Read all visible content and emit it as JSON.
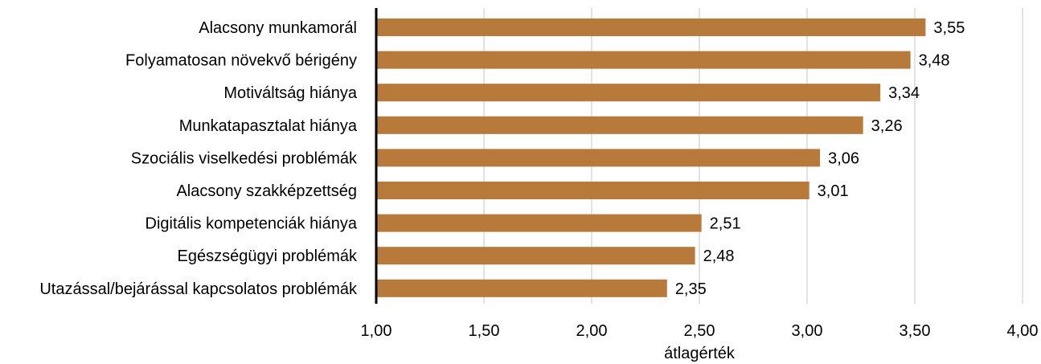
{
  "chart_data": {
    "type": "bar",
    "orientation": "horizontal",
    "categories": [
      "Alacsony munkamorál",
      "Folyamatosan növekvő bérigény",
      "Motiváltság hiánya",
      "Munkatapasztalat hiánya",
      "Szociális viselkedési problémák",
      "Alacsony szakképzettség",
      "Digitális kompetenciák hiánya",
      "Egészségügyi  problémák",
      "Utazással/bejárással kapcsolatos problémák"
    ],
    "values": [
      3.55,
      3.48,
      3.34,
      3.26,
      3.06,
      3.01,
      2.51,
      2.48,
      2.35
    ],
    "value_labels": [
      "3,55",
      "3,48",
      "3,34",
      "3,26",
      "3,06",
      "3,01",
      "2,51",
      "2,48",
      "2,35"
    ],
    "xlim": [
      1.0,
      4.0
    ],
    "xticks": [
      1.0,
      1.5,
      2.0,
      2.5,
      3.0,
      3.5,
      4.0
    ],
    "xtick_labels": [
      "1,00",
      "1,50",
      "2,00",
      "2,50",
      "3,00",
      "3,50",
      "4,00"
    ],
    "xlabel": "átlagérték",
    "ylabel": "",
    "title": "",
    "grid": "vertical",
    "legend": "none",
    "colors": {
      "bar": "#b87a3a",
      "grid": "#d9d9d9",
      "axis": "#000000"
    }
  }
}
